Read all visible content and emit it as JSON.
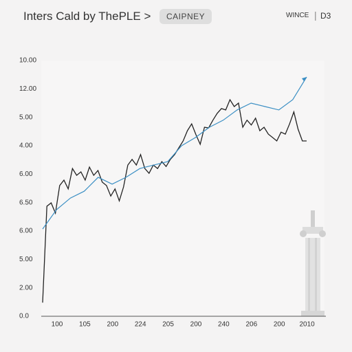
{
  "chart_data": {
    "type": "line",
    "title": "Inters Cald by ThePLE >",
    "button": "CAIPNEY",
    "menu": "WINCE",
    "icon": "D3",
    "y_labels": [
      "0.0",
      "2.00",
      "5.00",
      "6.00",
      "6.50",
      "6.00",
      "4.00",
      "5.00",
      "12.00",
      "10.00"
    ],
    "x_labels": [
      "100",
      "105",
      "200",
      "224",
      "205",
      "200",
      "240",
      "206",
      "200",
      "2010"
    ],
    "ylim": [
      0,
      9
    ],
    "series": [
      {
        "color": "#222222",
        "values": [
          0.48,
          3.87,
          3.99,
          3.63,
          4.6,
          4.79,
          4.48,
          5.2,
          4.96,
          5.08,
          4.79,
          5.25,
          4.96,
          5.13,
          4.72,
          4.6,
          4.23,
          4.48,
          4.06,
          4.55,
          5.32,
          5.52,
          5.32,
          5.69,
          5.2,
          5.03,
          5.32,
          5.2,
          5.44,
          5.27,
          5.52,
          5.69,
          5.93,
          6.17,
          6.53,
          6.77,
          6.39,
          6.05,
          6.65,
          6.63,
          6.9,
          7.14,
          7.31,
          7.26,
          7.62,
          7.38,
          7.5,
          6.65,
          6.9,
          6.73,
          6.97,
          6.53,
          6.65,
          6.41,
          6.29,
          6.17,
          6.48,
          6.41,
          6.77,
          7.19,
          6.58,
          6.17,
          6.17
        ]
      },
      {
        "color": "#3b8fc4",
        "values": [
          3.07,
          3.75,
          4.16,
          4.4,
          4.89,
          4.65,
          4.89,
          5.2,
          5.32,
          5.44,
          6.0,
          6.29,
          6.65,
          6.9,
          7.26,
          7.5,
          7.38,
          7.26,
          7.62,
          8.42
        ]
      }
    ]
  }
}
